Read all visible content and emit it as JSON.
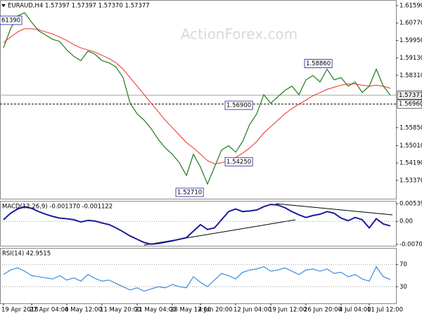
{
  "chart_data": [
    {
      "type": "line",
      "title": "EURAUD,H4 1.57397 1.57397 1.57370 1.57377",
      "watermark": "ActionForex.com",
      "categories": [
        "19 Apr 2018",
        null,
        null,
        null,
        "27 Apr 04:00",
        null,
        null,
        null,
        null,
        "4 May 12:00",
        null,
        null,
        null,
        null,
        "11 May 20:00",
        null,
        null,
        null,
        null,
        "21 May 04:00",
        null,
        null,
        null,
        null,
        "28 May 12:00",
        null,
        null,
        null,
        "4 Jun 20:00",
        null,
        null,
        null,
        null,
        "12 Jun 04:00",
        null,
        null,
        null,
        null,
        "19 Jun 12:00",
        null,
        null,
        null,
        null,
        "26 Jun 20:00",
        null,
        null,
        null,
        null,
        "4 Jul 04:00",
        null,
        null,
        null,
        "11 Jul 12:00",
        null,
        null,
        null
      ],
      "series": [
        {
          "color": "#1f7a1f",
          "values": [
            1.596,
            1.605,
            1.611,
            1.6125,
            1.608,
            1.604,
            1.602,
            1.6,
            1.599,
            1.595,
            1.592,
            1.59,
            1.5945,
            1.593,
            1.59,
            1.589,
            1.587,
            1.582,
            1.57,
            1.565,
            1.562,
            1.558,
            1.553,
            1.549,
            1.546,
            1.542,
            1.536,
            1.546,
            1.54,
            1.532,
            1.54,
            1.548,
            1.55,
            1.547,
            1.552,
            1.56,
            1.565,
            1.574,
            1.57,
            1.573,
            1.576,
            1.578,
            1.574,
            1.581,
            1.583,
            1.58,
            1.586,
            1.581,
            1.582,
            1.578,
            1.58,
            1.575,
            1.578,
            1.586,
            1.578,
            1.5738
          ]
        },
        {
          "color": "#e8302a",
          "values": [
            1.5985,
            1.601,
            1.6035,
            1.605,
            1.605,
            1.6045,
            1.6035,
            1.6025,
            1.601,
            1.5995,
            1.5975,
            1.596,
            1.595,
            1.594,
            1.5925,
            1.591,
            1.589,
            1.586,
            1.582,
            1.578,
            1.574,
            1.57,
            1.566,
            1.562,
            1.5585,
            1.555,
            1.5515,
            1.549,
            1.546,
            1.543,
            1.5415,
            1.542,
            1.543,
            1.5445,
            1.5465,
            1.549,
            1.552,
            1.556,
            1.559,
            1.562,
            1.565,
            1.5675,
            1.5695,
            1.5715,
            1.5735,
            1.575,
            1.5765,
            1.5775,
            1.5785,
            1.579,
            1.579,
            1.5785,
            1.578,
            1.5785,
            1.578,
            1.577
          ]
        }
      ],
      "ylim": [
        1.5251,
        1.6185
      ],
      "yticks": [
        {
          "value": 1.6159,
          "label": "1.61590"
        },
        {
          "value": 1.6077,
          "label": "1.60770"
        },
        {
          "value": 1.5995,
          "label": "1.59950"
        },
        {
          "value": 1.5913,
          "label": "1.59130"
        },
        {
          "value": 1.5831,
          "label": "1.58310"
        },
        {
          "value": 1.5585,
          "label": "1.55850"
        },
        {
          "value": 1.5501,
          "label": "1.55010"
        },
        {
          "value": 1.5419,
          "label": "1.54190"
        },
        {
          "value": 1.5337,
          "label": "1.53370"
        }
      ],
      "price_lines": [
        {
          "value": 1.57377,
          "label": "1.57377",
          "style": "solid"
        },
        {
          "value": 1.5696,
          "label": "1.56960",
          "style": "dashed"
        }
      ],
      "annotations": [
        {
          "value": 1.6139,
          "label": "61390"
        },
        {
          "value": 1.5886,
          "label": "1.58860"
        },
        {
          "value": 1.569,
          "label": "1.56900"
        },
        {
          "value": 1.5425,
          "label": "1.54250"
        },
        {
          "value": 1.5271,
          "label": "1.52710"
        }
      ]
    },
    {
      "type": "line",
      "title": "MACD(12,26,9) -0.001370 -0.001122",
      "series": [
        {
          "color": "#1c1c9c",
          "values": [
            0.0005,
            0.0025,
            0.0038,
            0.0045,
            0.004,
            0.003,
            0.0022,
            0.0015,
            0.001,
            0.0008,
            0.0005,
            -0.0002,
            0.0003,
            0.0001,
            -0.0005,
            -0.001,
            -0.002,
            -0.0032,
            -0.0045,
            -0.0055,
            -0.0065,
            -0.007,
            -0.0068,
            -0.0064,
            -0.006,
            -0.0055,
            -0.005,
            -0.003,
            -0.001,
            -0.0025,
            -0.002,
            0.0005,
            0.003,
            0.0038,
            0.003,
            0.0032,
            0.0035,
            0.0045,
            0.0052,
            0.005,
            0.0042,
            0.003,
            0.002,
            0.0012,
            0.0018,
            0.0022,
            0.003,
            0.0025,
            0.001,
            0.0002,
            0.0012,
            0.0005,
            -0.002,
            0.0008,
            -0.0008,
            -0.0014
          ]
        }
      ],
      "ylim": [
        -0.0075,
        0.0063
      ],
      "yticks": [
        0.005396,
        {
          "value": 0,
          "label": "0.00"
        },
        -0.007064
      ],
      "reference_lines": [
        0
      ]
    },
    {
      "type": "line",
      "title": "RSI(14) 42.9515",
      "series": [
        {
          "color": "#3d8bd9",
          "values": [
            52,
            60,
            64,
            58,
            50,
            48,
            46,
            44,
            50,
            42,
            46,
            40,
            52,
            45,
            40,
            42,
            36,
            30,
            24,
            28,
            22,
            26,
            30,
            28,
            34,
            30,
            28,
            48,
            38,
            30,
            42,
            54,
            50,
            44,
            56,
            60,
            62,
            66,
            58,
            60,
            64,
            58,
            52,
            60,
            62,
            58,
            62,
            54,
            56,
            48,
            52,
            44,
            40,
            66,
            48,
            43
          ]
        }
      ],
      "ylim": [
        0,
        100
      ],
      "yticks": [
        70,
        30
      ],
      "reference_lines": [
        70,
        30
      ]
    }
  ]
}
